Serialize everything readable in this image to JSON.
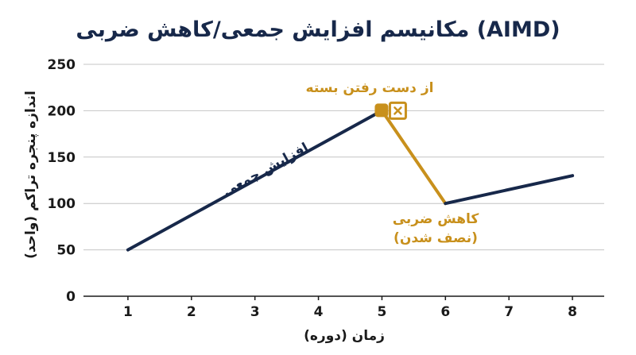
{
  "chart_data": {
    "type": "line",
    "title": "مکانیسم افزایش جمعی/کاهش ضربی (AIMD)",
    "xlabel": "زمان (دوره)",
    "ylabel": "اندازه پنجره تراکم (واحد)",
    "x_ticks": [
      "1",
      "2",
      "3",
      "4",
      "5",
      "6",
      "7",
      "8"
    ],
    "y_ticks": [
      "0",
      "50",
      "100",
      "150",
      "200",
      "250"
    ],
    "xlim": [
      0.3,
      8.5
    ],
    "ylim": [
      0,
      250
    ],
    "grid": true,
    "series": [
      {
        "segment": "increase",
        "color": "#17284a",
        "points": [
          [
            1,
            50
          ],
          [
            5,
            200
          ]
        ]
      },
      {
        "segment": "decrease",
        "color": "#c8901c",
        "points": [
          [
            5,
            200
          ],
          [
            6,
            100
          ]
        ]
      },
      {
        "segment": "increase",
        "color": "#17284a",
        "points": [
          [
            6,
            100
          ],
          [
            8,
            130
          ]
        ]
      }
    ],
    "markers": [
      {
        "name": "loss-marker-square",
        "x": 5,
        "y": 200,
        "shape": "rounded-square",
        "color": "#c8901c"
      },
      {
        "name": "loss-marker-cross",
        "x": 5,
        "y": 200,
        "shape": "x-box",
        "color": "#c8901c"
      }
    ],
    "annotations": {
      "increase": {
        "text": "افزایش جمعی",
        "color": "#17284a"
      },
      "loss": {
        "text": "از دست رفتن بسته",
        "color": "#c8901c"
      },
      "decrease_line1": {
        "text": "کاهش ضربی",
        "color": "#c8901c"
      },
      "decrease_line2": {
        "text": "(نصف شدن)",
        "color": "#c8901c"
      }
    }
  }
}
